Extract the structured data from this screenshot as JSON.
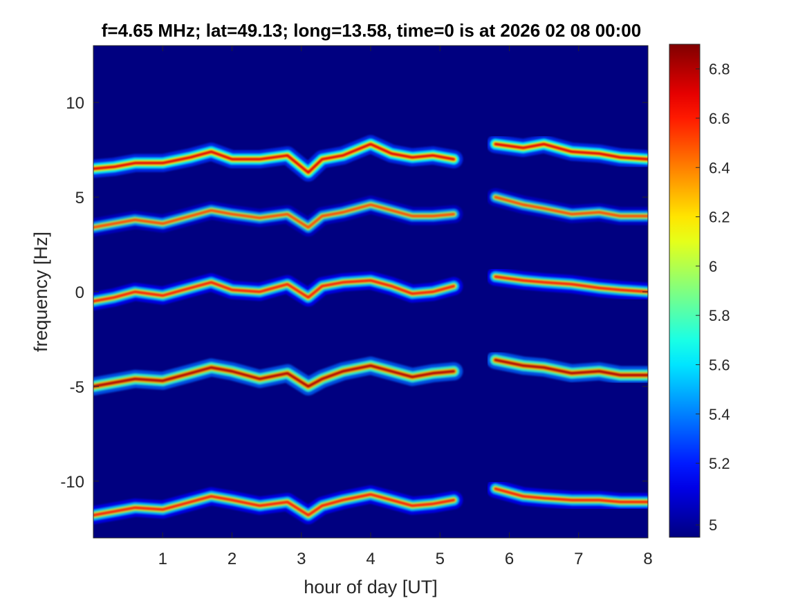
{
  "chart_data": {
    "type": "heatmap",
    "title": "f=4.65 MHz;  lat=49.13; long=13.58, time=0 is at 2026 02 08 00:00",
    "xlabel": "hour of day [UT]",
    "ylabel": "frequency [Hz]",
    "xlim": [
      0,
      8
    ],
    "ylim": [
      -13,
      13
    ],
    "xticks": [
      1,
      2,
      3,
      4,
      5,
      6,
      7,
      8
    ],
    "xtick_labels": [
      "1",
      "2",
      "3",
      "4",
      "5",
      "6",
      "7",
      "8"
    ],
    "yticks": [
      10,
      5,
      0,
      -5,
      -10
    ],
    "ytick_labels": [
      "10",
      "5",
      "0",
      "-5",
      "-10"
    ],
    "colorbar": {
      "colormap": "jet",
      "clim": [
        4.9,
        6.9
      ],
      "ticks": [
        4.95,
        5.2,
        5.4,
        5.6,
        5.8,
        6.0,
        6.2,
        6.4,
        6.6,
        6.8
      ],
      "tick_labels": [
        "5",
        "5.2",
        "5.4",
        "5.6",
        "5.8",
        "6",
        "6.2",
        "6.4",
        "6.6",
        "6.8"
      ]
    },
    "background_value": 4.9,
    "data_gap_hours": [
      5.3,
      5.7
    ],
    "series": [
      {
        "x": [
          0.0,
          0.3,
          0.6,
          1.0,
          1.4,
          1.7,
          2.0,
          2.4,
          2.8,
          3.1,
          3.3,
          3.6,
          4.0,
          4.3,
          4.6,
          4.9,
          5.2,
          5.8,
          6.2,
          6.5,
          6.9,
          7.3,
          7.6,
          8.0
        ],
        "y": [
          6.5,
          6.6,
          6.8,
          6.8,
          7.1,
          7.4,
          7.0,
          7.0,
          7.2,
          6.3,
          7.0,
          7.2,
          7.8,
          7.3,
          7.1,
          7.2,
          7.0,
          7.8,
          7.6,
          7.8,
          7.4,
          7.3,
          7.1,
          7.0
        ],
        "intensity": 6.7
      },
      {
        "x": [
          0.0,
          0.3,
          0.6,
          1.0,
          1.4,
          1.7,
          2.0,
          2.4,
          2.8,
          3.1,
          3.3,
          3.6,
          4.0,
          4.3,
          4.6,
          4.9,
          5.2,
          5.8,
          6.2,
          6.5,
          6.9,
          7.3,
          7.6,
          8.0
        ],
        "y": [
          3.4,
          3.6,
          3.8,
          3.6,
          4.0,
          4.3,
          4.1,
          3.9,
          4.1,
          3.4,
          4.0,
          4.2,
          4.6,
          4.3,
          4.0,
          4.0,
          4.1,
          5.0,
          4.6,
          4.4,
          4.1,
          4.2,
          4.0,
          4.0
        ],
        "intensity": 6.5
      },
      {
        "x": [
          0.0,
          0.3,
          0.6,
          1.0,
          1.4,
          1.7,
          2.0,
          2.4,
          2.8,
          3.1,
          3.3,
          3.6,
          4.0,
          4.3,
          4.6,
          4.9,
          5.2,
          5.8,
          6.2,
          6.5,
          6.9,
          7.3,
          7.6,
          8.0
        ],
        "y": [
          -0.5,
          -0.3,
          0.0,
          -0.2,
          0.2,
          0.5,
          0.1,
          0.0,
          0.4,
          -0.3,
          0.3,
          0.5,
          0.6,
          0.3,
          -0.1,
          0.0,
          0.3,
          0.8,
          0.6,
          0.5,
          0.4,
          0.2,
          0.1,
          0.0
        ],
        "intensity": 6.6
      },
      {
        "x": [
          0.0,
          0.3,
          0.6,
          1.0,
          1.4,
          1.7,
          2.0,
          2.4,
          2.8,
          3.1,
          3.3,
          3.6,
          4.0,
          4.3,
          4.6,
          4.9,
          5.2,
          5.8,
          6.2,
          6.5,
          6.9,
          7.3,
          7.6,
          8.0
        ],
        "y": [
          -5.0,
          -4.8,
          -4.6,
          -4.7,
          -4.3,
          -4.0,
          -4.2,
          -4.6,
          -4.3,
          -5.0,
          -4.6,
          -4.2,
          -3.9,
          -4.2,
          -4.5,
          -4.3,
          -4.2,
          -3.6,
          -3.9,
          -4.0,
          -4.3,
          -4.2,
          -4.4,
          -4.4
        ],
        "intensity": 6.8
      },
      {
        "x": [
          0.0,
          0.3,
          0.6,
          1.0,
          1.4,
          1.7,
          2.0,
          2.4,
          2.8,
          3.1,
          3.3,
          3.6,
          4.0,
          4.3,
          4.6,
          4.9,
          5.2,
          5.8,
          6.2,
          6.5,
          6.9,
          7.3,
          7.6,
          8.0
        ],
        "y": [
          -11.8,
          -11.6,
          -11.4,
          -11.5,
          -11.1,
          -10.8,
          -11.0,
          -11.3,
          -11.1,
          -11.8,
          -11.3,
          -11.0,
          -10.7,
          -11.0,
          -11.3,
          -11.2,
          -11.0,
          -10.4,
          -10.8,
          -10.9,
          -11.0,
          -11.0,
          -11.1,
          -11.1
        ],
        "intensity": 6.6
      }
    ]
  }
}
